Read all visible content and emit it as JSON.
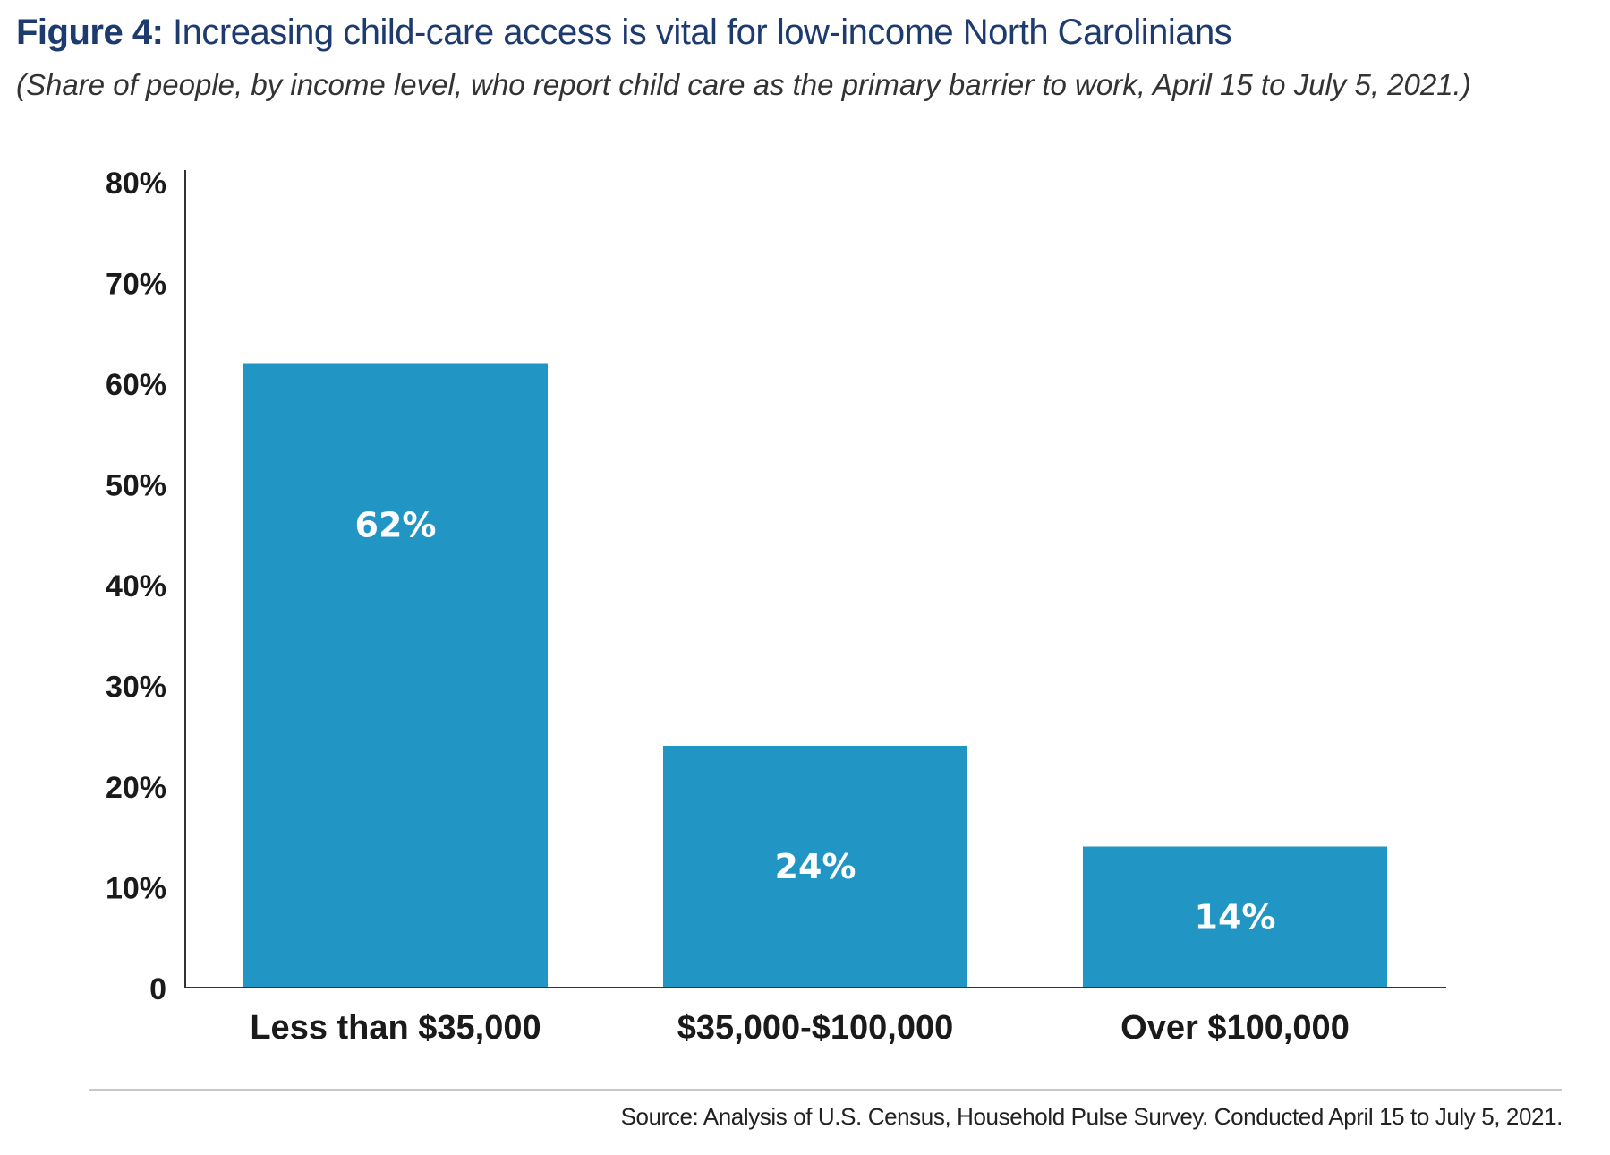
{
  "title_label": "Figure 4:",
  "title_text": "Increasing child-care access is vital for low-income North Carolinians",
  "subtitle": "(Share of people, by income level, who report child care as the primary barrier to work, April 15 to July 5, 2021.)",
  "source": "Source: Analysis of U.S. Census, Household Pulse Survey. Conducted April 15 to July 5, 2021.",
  "colors": {
    "bar": "#2196c4",
    "title": "#1d3b6e",
    "axis": "#333333",
    "data_label": "#ffffff"
  },
  "chart_data": {
    "type": "bar",
    "title": "",
    "xlabel": "",
    "ylabel": "",
    "categories": [
      "Less than $35,000",
      "$35,000-$100,000",
      "Over $100,000"
    ],
    "values": [
      62,
      24,
      14
    ],
    "value_labels": [
      "62%",
      "24%",
      "14%"
    ],
    "ylim": [
      0,
      80
    ],
    "yticks": [
      0,
      10,
      20,
      30,
      40,
      50,
      60,
      70,
      80
    ],
    "ytick_labels": [
      "0",
      "10%",
      "20%",
      "30%",
      "40%",
      "50%",
      "60%",
      "70%",
      "80%"
    ],
    "grid": false,
    "legend": "none"
  }
}
